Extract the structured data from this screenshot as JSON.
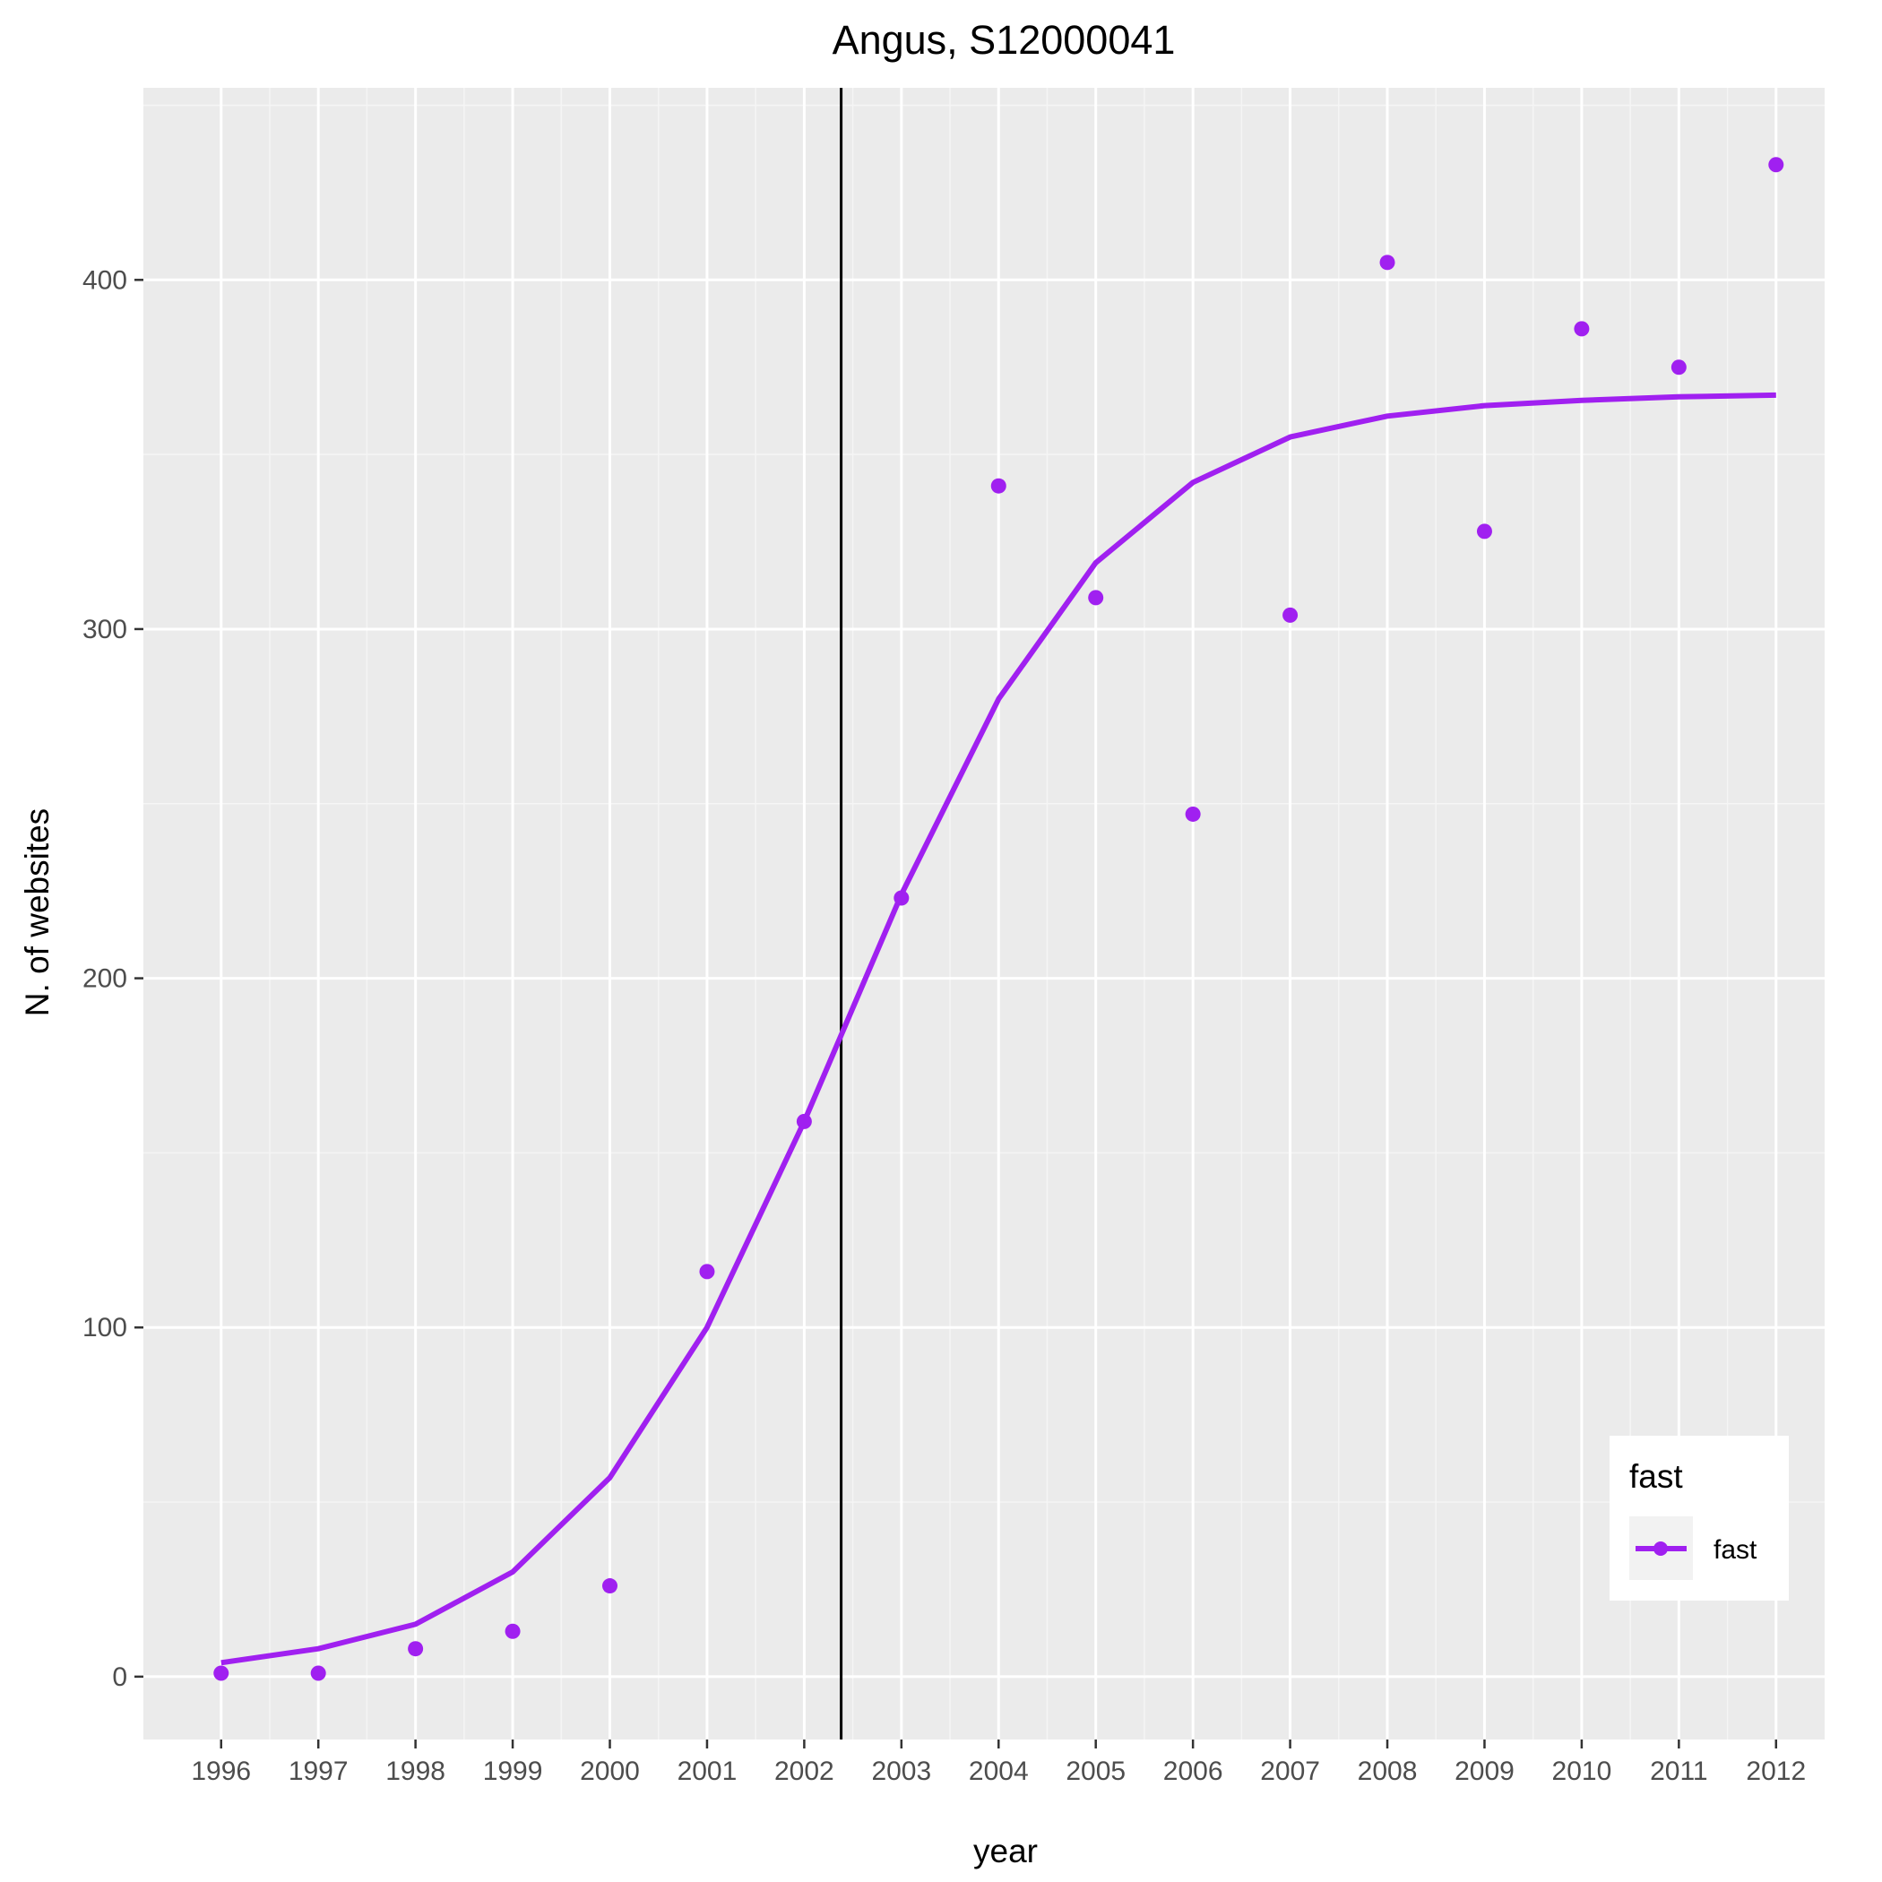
{
  "chart_data": {
    "type": "scatter",
    "title": "Angus, S12000041",
    "xlabel": "year",
    "ylabel": "N. of websites",
    "x": [
      1996,
      1997,
      1998,
      1999,
      2000,
      2001,
      2002,
      2003,
      2004,
      2005,
      2006,
      2007,
      2008,
      2009,
      2010,
      2011,
      2012
    ],
    "x_tick_labels": [
      "1996",
      "1997",
      "1998",
      "1999",
      "2000",
      "2001",
      "2002",
      "2003",
      "2004",
      "2005",
      "2006",
      "2007",
      "2008",
      "2009",
      "2010",
      "2011",
      "2012"
    ],
    "y_ticks": [
      0,
      100,
      200,
      300,
      400
    ],
    "y_tick_labels": [
      "0",
      "100",
      "200",
      "300",
      "400"
    ],
    "xlim": [
      1995.2,
      2012.5
    ],
    "ylim": [
      -18,
      455
    ],
    "grid": true,
    "vline_x": 2002.38,
    "series": [
      {
        "name": "fast",
        "kind": "points",
        "values": [
          1,
          1,
          8,
          13,
          26,
          116,
          159,
          223,
          341,
          309,
          247,
          304,
          405,
          328,
          386,
          375,
          433
        ]
      },
      {
        "name": "fast",
        "kind": "line",
        "values": [
          4,
          8,
          15,
          30,
          57,
          100,
          159,
          224,
          280,
          319,
          342,
          355,
          361,
          364,
          365.5,
          366.5,
          367
        ]
      }
    ],
    "legend": {
      "title": "fast",
      "entries": [
        "fast"
      ],
      "position": "bottom-right"
    },
    "colors": {
      "series": "#a020f0",
      "panel": "#ebebeb",
      "grid_major": "#ffffff",
      "grid_minor": "#f5f5f5",
      "vline": "#000000"
    }
  }
}
